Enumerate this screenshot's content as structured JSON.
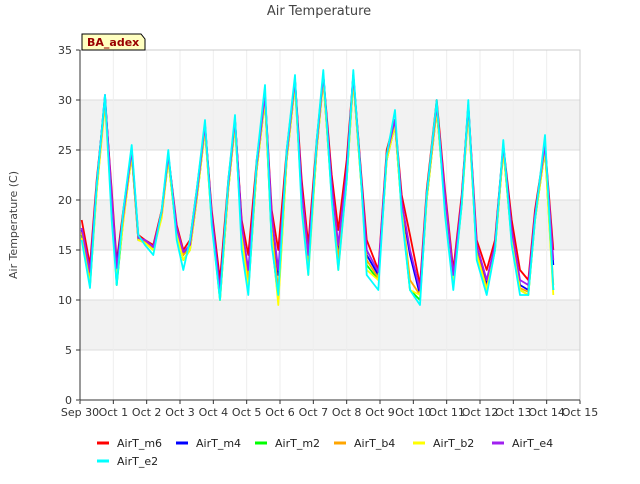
{
  "chart_data": {
    "type": "line",
    "title": "Air Temperature",
    "ylabel": "Air Temperature (C)",
    "xlabel": "",
    "badge": "BA_adex",
    "xlim": [
      0,
      15
    ],
    "ylim": [
      0,
      35
    ],
    "x_ticks": [
      {
        "v": 0,
        "label": "Sep 30"
      },
      {
        "v": 1,
        "label": "Oct 1"
      },
      {
        "v": 2,
        "label": "Oct 2"
      },
      {
        "v": 3,
        "label": "Oct 3"
      },
      {
        "v": 4,
        "label": "Oct 4"
      },
      {
        "v": 5,
        "label": "Oct 5"
      },
      {
        "v": 6,
        "label": "Oct 6"
      },
      {
        "v": 7,
        "label": "Oct 7"
      },
      {
        "v": 8,
        "label": "Oct 8"
      },
      {
        "v": 9,
        "label": "Oct 9"
      },
      {
        "v": 10,
        "label": "Oct 10"
      },
      {
        "v": 11,
        "label": "Oct 11"
      },
      {
        "v": 12,
        "label": "Oct 12"
      },
      {
        "v": 13,
        "label": "Oct 13"
      },
      {
        "v": 14,
        "label": "Oct 14"
      },
      {
        "v": 15,
        "label": "Oct 15"
      }
    ],
    "y_ticks": [
      0,
      5,
      10,
      15,
      20,
      25,
      30,
      35
    ],
    "grid": true,
    "legend_position": "bottom",
    "series": [
      {
        "name": "AirT_m6",
        "color": "#ff0000",
        "x": [
          0.05,
          0.3,
          0.5,
          0.75,
          0.95,
          1.1,
          1.3,
          1.55,
          1.75,
          1.95,
          2.2,
          2.45,
          2.65,
          2.9,
          3.1,
          3.3,
          3.5,
          3.75,
          3.95,
          4.2,
          4.45,
          4.65,
          4.85,
          5.05,
          5.3,
          5.55,
          5.75,
          5.95,
          6.2,
          6.45,
          6.65,
          6.85,
          7.1,
          7.3,
          7.55,
          7.75,
          8.0,
          8.2,
          8.45,
          8.6,
          8.95,
          9.2,
          9.45,
          9.65,
          9.9,
          10.2,
          10.4,
          10.7,
          10.95,
          11.2,
          11.45,
          11.65,
          11.9,
          12.2,
          12.45,
          12.7,
          12.95,
          13.2,
          13.45,
          13.65,
          13.95,
          14.2
        ],
        "y": [
          18.0,
          13.5,
          22.0,
          30.0,
          21.0,
          13.8,
          19.0,
          25.0,
          16.5,
          16.0,
          15.5,
          19.0,
          24.5,
          17.5,
          15.0,
          16.0,
          21.0,
          27.5,
          19.0,
          12.0,
          22.0,
          28.0,
          18.0,
          14.5,
          24.0,
          30.5,
          19.0,
          15.0,
          25.0,
          32.0,
          22.0,
          15.5,
          26.0,
          32.5,
          22.5,
          17.0,
          24.0,
          32.5,
          22.0,
          16.0,
          13.0,
          25.0,
          28.0,
          20.5,
          16.5,
          11.5,
          21.0,
          30.0,
          21.0,
          13.0,
          20.5,
          29.5,
          16.0,
          13.0,
          16.0,
          25.5,
          18.0,
          13.0,
          12.0,
          19.0,
          25.5,
          15.0
        ]
      },
      {
        "name": "AirT_m4",
        "color": "#0000ff",
        "x": [
          0.05,
          0.3,
          0.5,
          0.75,
          0.95,
          1.1,
          1.3,
          1.55,
          1.75,
          1.95,
          2.2,
          2.45,
          2.65,
          2.9,
          3.1,
          3.3,
          3.5,
          3.75,
          3.95,
          4.2,
          4.45,
          4.65,
          4.85,
          5.05,
          5.3,
          5.55,
          5.75,
          5.95,
          6.2,
          6.45,
          6.65,
          6.85,
          7.1,
          7.3,
          7.55,
          7.75,
          8.0,
          8.2,
          8.45,
          8.6,
          8.95,
          9.2,
          9.45,
          9.65,
          9.9,
          10.2,
          10.4,
          10.7,
          10.95,
          11.2,
          11.45,
          11.65,
          11.9,
          12.2,
          12.45,
          12.7,
          12.95,
          13.2,
          13.45,
          13.65,
          13.95,
          14.2
        ],
        "y": [
          17.0,
          12.5,
          21.5,
          30.5,
          20.0,
          13.5,
          18.5,
          25.0,
          16.0,
          15.8,
          15.2,
          18.5,
          24.5,
          17.0,
          14.5,
          15.5,
          20.5,
          27.5,
          18.5,
          11.0,
          21.5,
          28.0,
          17.5,
          12.5,
          23.5,
          30.5,
          18.0,
          12.5,
          24.5,
          32.0,
          21.0,
          14.0,
          25.5,
          32.5,
          21.5,
          15.0,
          23.0,
          32.5,
          21.5,
          14.5,
          12.5,
          24.5,
          28.0,
          19.5,
          14.5,
          10.5,
          20.5,
          29.5,
          20.0,
          12.0,
          20.0,
          29.5,
          15.0,
          11.5,
          15.5,
          25.5,
          17.0,
          11.5,
          11.0,
          18.5,
          25.5,
          13.5
        ]
      },
      {
        "name": "AirT_m2",
        "color": "#00ff00",
        "x": [
          0.05,
          0.3,
          0.5,
          0.75,
          0.95,
          1.1,
          1.3,
          1.55,
          1.75,
          1.95,
          2.2,
          2.45,
          2.65,
          2.9,
          3.1,
          3.3,
          3.5,
          3.75,
          3.95,
          4.2,
          4.45,
          4.65,
          4.85,
          5.05,
          5.3,
          5.55,
          5.75,
          5.95,
          6.2,
          6.45,
          6.65,
          6.85,
          7.1,
          7.3,
          7.55,
          7.75,
          8.0,
          8.2,
          8.45,
          8.6,
          8.95,
          9.2,
          9.45,
          9.65,
          9.9,
          10.2,
          10.4,
          10.7,
          10.95,
          11.2,
          11.45,
          11.65,
          11.9,
          12.2,
          12.45,
          12.7,
          12.95,
          13.2,
          13.45,
          13.65,
          13.95,
          14.2
        ],
        "y": [
          16.5,
          11.5,
          21.0,
          30.0,
          19.5,
          11.5,
          18.0,
          24.5,
          16.0,
          15.8,
          15.0,
          18.5,
          24.0,
          16.5,
          14.0,
          15.0,
          20.0,
          27.0,
          18.0,
          10.0,
          21.0,
          27.5,
          16.5,
          11.0,
          23.0,
          30.0,
          16.0,
          10.0,
          24.0,
          31.5,
          20.0,
          13.0,
          25.0,
          32.0,
          20.5,
          13.5,
          22.0,
          32.0,
          21.0,
          13.5,
          12.0,
          24.0,
          27.5,
          19.0,
          11.0,
          10.0,
          20.0,
          29.0,
          19.5,
          11.5,
          19.5,
          29.0,
          14.5,
          11.0,
          15.0,
          25.0,
          16.0,
          11.0,
          10.5,
          18.0,
          25.0,
          11.0
        ]
      },
      {
        "name": "AirT_b4",
        "color": "#ffa500",
        "x": [
          0.05,
          0.3,
          0.5,
          0.75,
          0.95,
          1.1,
          1.3,
          1.55,
          1.75,
          1.95,
          2.2,
          2.45,
          2.65,
          2.9,
          3.1,
          3.3,
          3.5,
          3.75,
          3.95,
          4.2,
          4.45,
          4.65,
          4.85,
          5.05,
          5.3,
          5.55,
          5.75,
          5.95,
          6.2,
          6.45,
          6.65,
          6.85,
          7.1,
          7.3,
          7.55,
          7.75,
          8.0,
          8.2,
          8.45,
          8.6,
          8.95,
          9.2,
          9.45,
          9.65,
          9.9,
          10.2,
          10.4,
          10.7,
          10.95,
          11.2,
          11.45,
          11.65,
          11.9,
          12.2,
          12.45,
          12.7,
          12.95,
          13.2,
          13.45,
          13.65,
          13.95,
          14.2
        ],
        "y": [
          16.8,
          12.0,
          21.0,
          29.8,
          20.0,
          12.5,
          18.0,
          24.6,
          16.2,
          15.8,
          15.2,
          18.5,
          24.2,
          17.0,
          14.5,
          15.2,
          20.2,
          27.2,
          18.2,
          10.5,
          21.2,
          27.8,
          17.0,
          12.0,
          23.2,
          30.2,
          17.0,
          11.0,
          24.2,
          31.8,
          20.5,
          13.5,
          25.2,
          32.2,
          21.0,
          14.0,
          22.5,
          32.2,
          21.2,
          14.0,
          12.2,
          24.2,
          27.8,
          19.2,
          12.0,
          10.5,
          20.2,
          29.2,
          19.8,
          11.8,
          19.8,
          29.2,
          14.8,
          11.2,
          15.2,
          25.2,
          16.5,
          11.2,
          10.8,
          18.2,
          25.2,
          11.5
        ]
      },
      {
        "name": "AirT_b2",
        "color": "#ffff00",
        "x": [
          0.05,
          0.3,
          0.5,
          0.75,
          0.95,
          1.1,
          1.3,
          1.55,
          1.75,
          1.95,
          2.2,
          2.45,
          2.65,
          2.9,
          3.1,
          3.3,
          3.5,
          3.75,
          3.95,
          4.2,
          4.45,
          4.65,
          4.85,
          5.05,
          5.3,
          5.55,
          5.75,
          5.95,
          6.2,
          6.45,
          6.65,
          6.85,
          7.1,
          7.3,
          7.55,
          7.75,
          8.0,
          8.2,
          8.45,
          8.6,
          8.95,
          9.2,
          9.45,
          9.65,
          9.9,
          10.2,
          10.4,
          10.7,
          10.95,
          11.2,
          11.45,
          11.65,
          11.9,
          12.2,
          12.45,
          12.7,
          12.95,
          13.2,
          13.45,
          13.65,
          13.95,
          14.2
        ],
        "y": [
          16.2,
          11.5,
          20.8,
          29.5,
          19.0,
          12.0,
          17.8,
          24.5,
          16.0,
          15.7,
          15.0,
          18.2,
          24.0,
          16.5,
          14.0,
          15.0,
          20.0,
          27.0,
          17.8,
          10.0,
          21.0,
          27.5,
          16.5,
          11.0,
          23.0,
          30.0,
          16.5,
          9.5,
          24.0,
          31.5,
          20.0,
          12.5,
          25.0,
          32.0,
          20.5,
          13.0,
          22.0,
          32.0,
          21.0,
          13.0,
          12.0,
          24.0,
          27.5,
          19.0,
          11.0,
          10.5,
          20.0,
          29.0,
          19.5,
          11.5,
          19.5,
          29.0,
          14.5,
          11.0,
          15.0,
          25.0,
          16.0,
          11.0,
          10.5,
          18.0,
          25.0,
          10.5
        ]
      },
      {
        "name": "AirT_e4",
        "color": "#a020f0",
        "x": [
          0.05,
          0.3,
          0.5,
          0.75,
          0.95,
          1.1,
          1.3,
          1.55,
          1.75,
          1.95,
          2.2,
          2.45,
          2.65,
          2.9,
          3.1,
          3.3,
          3.5,
          3.75,
          3.95,
          4.2,
          4.45,
          4.65,
          4.85,
          5.05,
          5.3,
          5.55,
          5.75,
          5.95,
          6.2,
          6.45,
          6.65,
          6.85,
          7.1,
          7.3,
          7.55,
          7.75,
          8.0,
          8.2,
          8.45,
          8.6,
          8.95,
          9.2,
          9.45,
          9.65,
          9.9,
          10.2,
          10.4,
          10.7,
          10.95,
          11.2,
          11.45,
          11.65,
          11.9,
          12.2,
          12.45,
          12.7,
          12.95,
          13.2,
          13.45,
          13.65,
          13.95,
          14.2
        ],
        "y": [
          17.2,
          12.8,
          21.5,
          30.2,
          20.5,
          13.2,
          18.5,
          25.0,
          16.2,
          16.0,
          15.3,
          18.8,
          24.5,
          17.2,
          14.8,
          15.5,
          20.5,
          27.5,
          18.5,
          11.0,
          21.5,
          28.0,
          17.5,
          13.0,
          23.5,
          30.5,
          18.5,
          13.0,
          24.5,
          32.0,
          21.0,
          14.5,
          25.5,
          32.5,
          21.5,
          15.5,
          23.0,
          32.5,
          21.5,
          15.0,
          12.8,
          24.5,
          28.0,
          19.8,
          15.0,
          11.0,
          20.5,
          29.5,
          20.5,
          12.5,
          20.0,
          29.5,
          15.5,
          12.0,
          15.5,
          25.5,
          17.0,
          12.0,
          11.5,
          18.5,
          25.5,
          14.0
        ]
      },
      {
        "name": "AirT_e2",
        "color": "#00ffff",
        "x": [
          0.05,
          0.3,
          0.5,
          0.75,
          0.95,
          1.1,
          1.3,
          1.55,
          1.75,
          1.95,
          2.2,
          2.45,
          2.65,
          2.9,
          3.1,
          3.3,
          3.5,
          3.75,
          3.95,
          4.2,
          4.45,
          4.65,
          4.85,
          5.05,
          5.3,
          5.55,
          5.75,
          5.95,
          6.2,
          6.45,
          6.65,
          6.85,
          7.1,
          7.3,
          7.55,
          7.75,
          8.0,
          8.2,
          8.45,
          8.6,
          8.95,
          9.2,
          9.45,
          9.65,
          9.9,
          10.2,
          10.4,
          10.7,
          10.95,
          11.2,
          11.45,
          11.65,
          11.9,
          12.2,
          12.45,
          12.7,
          12.95,
          13.2,
          13.45,
          13.65,
          13.95,
          14.2
        ],
        "y": [
          16.0,
          11.2,
          21.5,
          30.5,
          18.0,
          11.5,
          19.0,
          25.5,
          16.5,
          15.5,
          14.5,
          19.0,
          25.0,
          16.0,
          13.0,
          16.0,
          21.0,
          28.0,
          17.5,
          10.0,
          22.0,
          28.5,
          15.0,
          10.5,
          24.0,
          31.5,
          15.5,
          10.5,
          25.0,
          32.5,
          19.0,
          12.5,
          26.0,
          33.0,
          20.0,
          13.0,
          22.0,
          33.0,
          21.0,
          12.5,
          11.0,
          24.5,
          29.0,
          18.5,
          11.0,
          9.5,
          20.5,
          30.0,
          18.5,
          11.0,
          19.5,
          30.0,
          14.0,
          10.5,
          15.0,
          26.0,
          15.5,
          10.5,
          10.5,
          18.0,
          26.5,
          11.0
        ]
      }
    ]
  }
}
